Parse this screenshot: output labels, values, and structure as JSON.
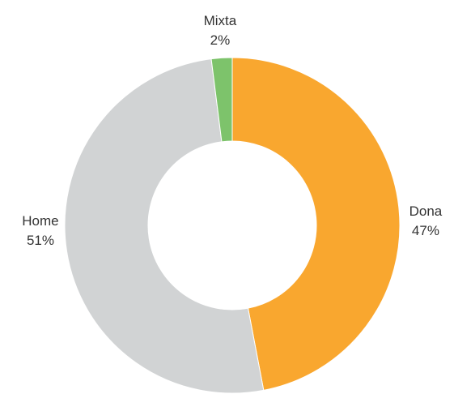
{
  "chart_data": {
    "type": "donut",
    "categories": [
      "Dona",
      "Home",
      "Mixta"
    ],
    "values": [
      47,
      51,
      2
    ],
    "value_labels": [
      "47%",
      "51%",
      "2%"
    ],
    "colors": [
      "#f9a72f",
      "#d1d3d4",
      "#7dc36b"
    ]
  }
}
